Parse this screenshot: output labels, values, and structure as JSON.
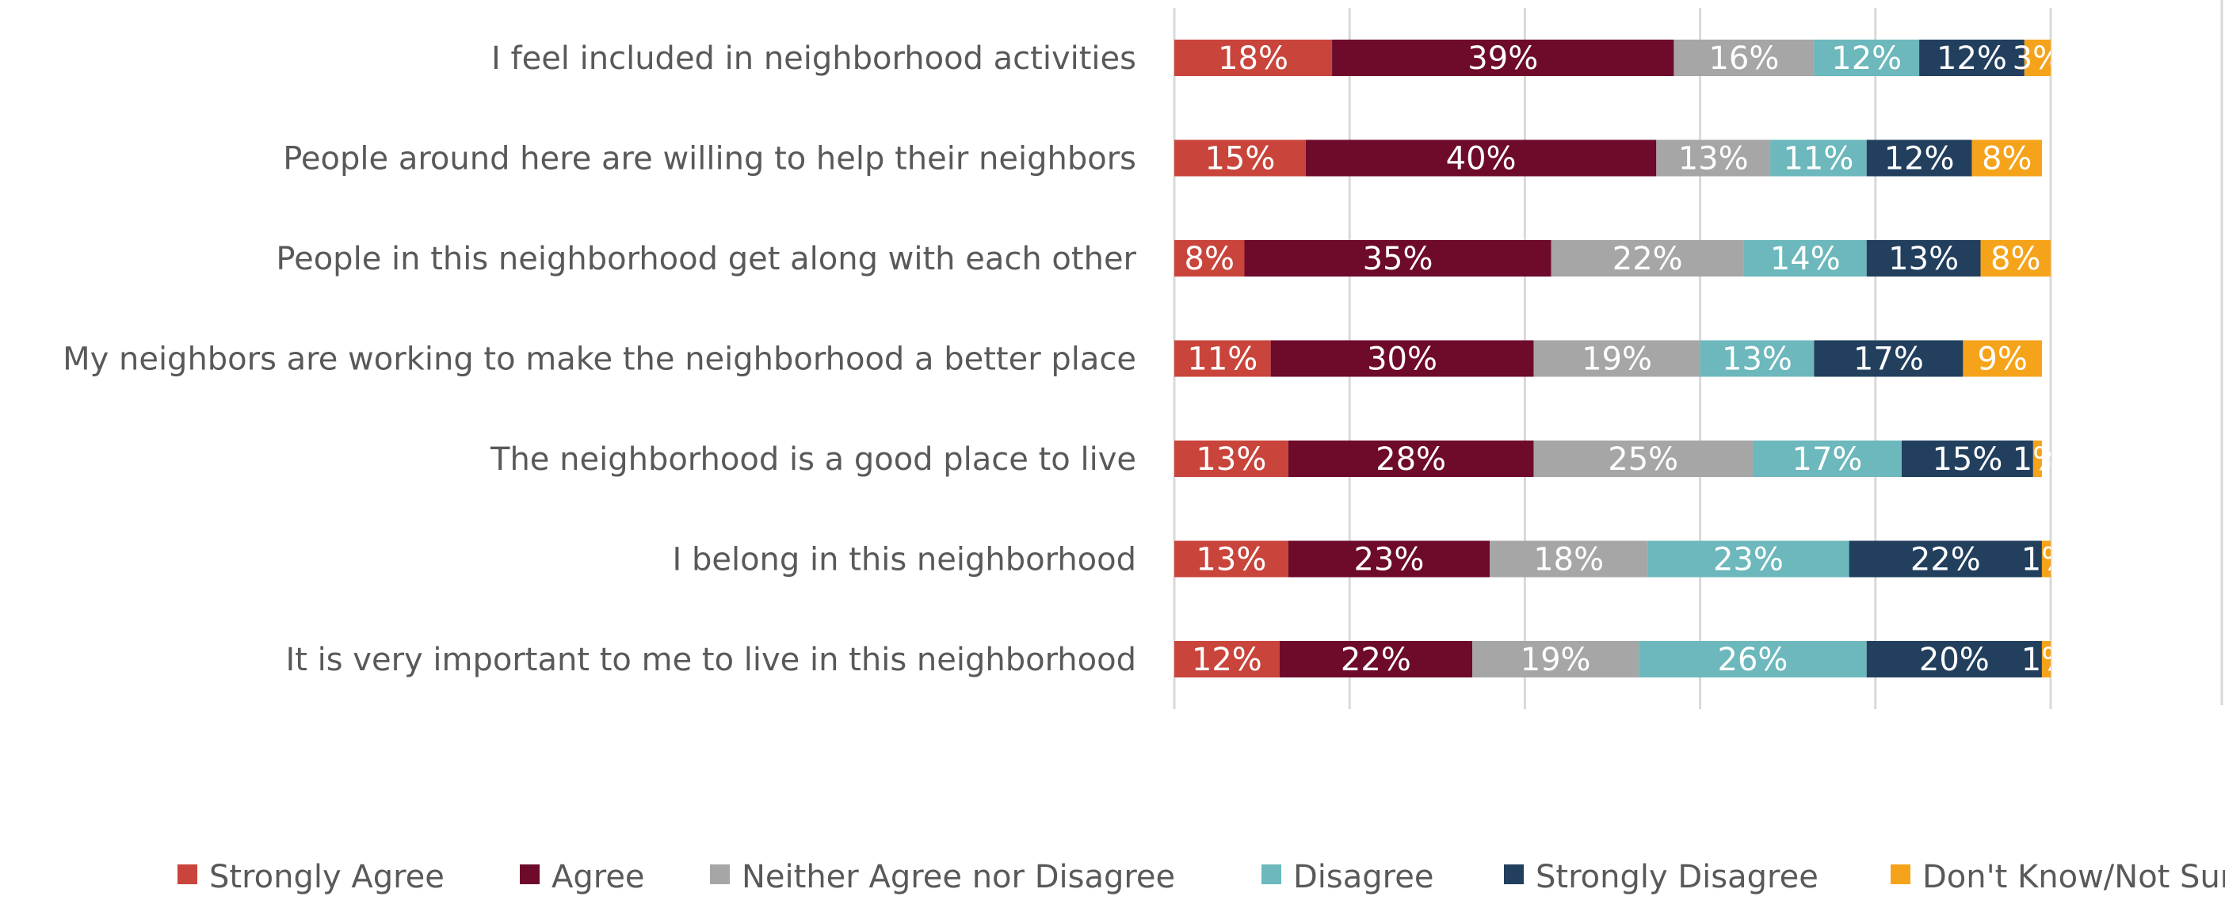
{
  "chart_data": {
    "type": "bar",
    "orientation": "horizontal",
    "stacked": true,
    "title": "",
    "xlabel": "",
    "ylabel": "",
    "xlim": [
      0,
      100
    ],
    "grid": true,
    "legend_position": "bottom",
    "categories": [
      "I feel included in neighborhood activities",
      "People around here are willing to help their neighbors",
      "People in this neighborhood get along with each other",
      "My neighbors are working to make the neighborhood a better place",
      "The neighborhood is a good place to live",
      "I belong in this neighborhood",
      "It is very important to me to live in this neighborhood"
    ],
    "series": [
      {
        "name": "Strongly Agree",
        "color": "#C9443B",
        "values": [
          18,
          15,
          8,
          11,
          13,
          13,
          12
        ],
        "labels": [
          "18%",
          "15%",
          "8%",
          "11%",
          "13%",
          "13%",
          "12%"
        ]
      },
      {
        "name": "Agree",
        "color": "#6E0A2A",
        "values": [
          39,
          40,
          35,
          30,
          28,
          23,
          22
        ],
        "labels": [
          "39%",
          "40%",
          "35%",
          "30%",
          "28%",
          "23%",
          "22%"
        ]
      },
      {
        "name": "Neither Agree nor Disagree",
        "color": "#A6A6A6",
        "values": [
          16,
          13,
          22,
          19,
          25,
          18,
          19
        ],
        "labels": [
          "16%",
          "13%",
          "22%",
          "19%",
          "25%",
          "18%",
          "19%"
        ]
      },
      {
        "name": "Disagree",
        "color": "#6CB8BC",
        "values": [
          12,
          11,
          14,
          13,
          17,
          23,
          26
        ],
        "labels": [
          "12%",
          "11%",
          "14%",
          "13%",
          "17%",
          "23%",
          "26%"
        ]
      },
      {
        "name": "Strongly Disagree",
        "color": "#223F5E",
        "values": [
          12,
          12,
          13,
          17,
          15,
          22,
          20
        ],
        "labels": [
          "12%",
          "12%",
          "13%",
          "17%",
          "15%",
          "22%",
          "20%"
        ]
      },
      {
        "name": "Don't Know/Not Sure",
        "color": "#F5A31A",
        "values": [
          3,
          8,
          8,
          9,
          1,
          1,
          1
        ],
        "labels": [
          "3%",
          "8%",
          "8%",
          "9%",
          "1%",
          "1%",
          "1%"
        ]
      }
    ]
  }
}
